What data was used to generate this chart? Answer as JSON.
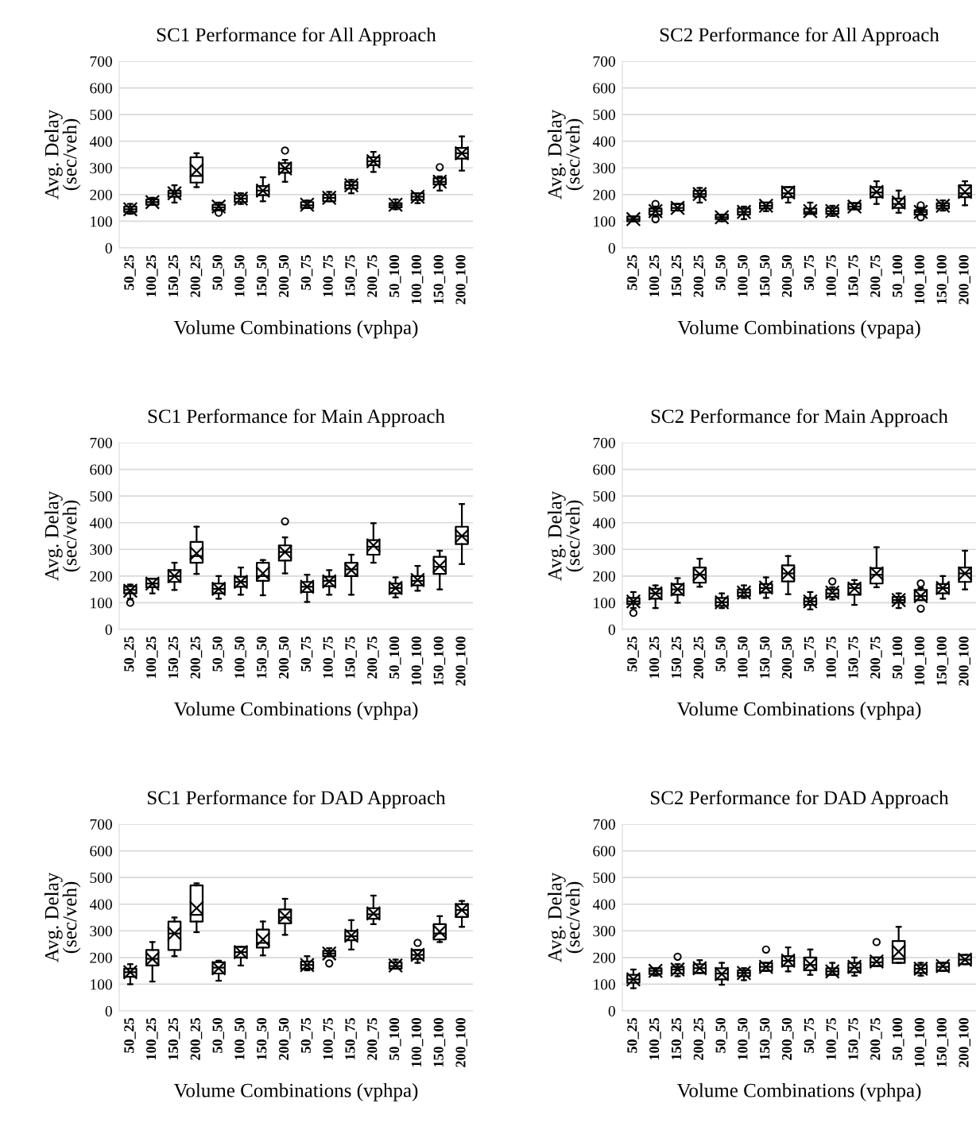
{
  "chart_data": [
    {
      "type": "box",
      "title": "SC1 Performance for All Approach",
      "xlabel": "Volume Combinations (vphpa)",
      "ylabel": "Avg. Delay\n(sec/veh)",
      "categories": [
        "50_25",
        "100_25",
        "150_25",
        "200_25",
        "50_50",
        "100_50",
        "150_50",
        "200_50",
        "50_75",
        "100_75",
        "150_75",
        "200_75",
        "50_100",
        "100_100",
        "150_100",
        "200_100"
      ],
      "ylim": [
        0,
        700
      ],
      "yticks": [
        0,
        100,
        200,
        300,
        400,
        500,
        600,
        700
      ],
      "grid": "y",
      "legend": false,
      "boxes": [
        {
          "low": 128,
          "q1": 135,
          "median": 145,
          "q3": 155,
          "high": 165,
          "mean": 145
        },
        {
          "low": 162,
          "q1": 162,
          "median": 172,
          "q3": 182,
          "high": 188,
          "mean": 172
        },
        {
          "low": 170,
          "q1": 192,
          "median": 205,
          "q3": 215,
          "high": 235,
          "mean": 205
        },
        {
          "low": 228,
          "q1": 245,
          "median": 270,
          "q3": 340,
          "high": 355,
          "mean": 291
        },
        {
          "low": 142,
          "q1": 142,
          "median": 152,
          "q3": 162,
          "high": 170,
          "mean": 155,
          "outliers": [
            132
          ]
        },
        {
          "low": 165,
          "q1": 172,
          "median": 185,
          "q3": 198,
          "high": 205,
          "mean": 185
        },
        {
          "low": 175,
          "q1": 198,
          "median": 215,
          "q3": 232,
          "high": 265,
          "mean": 215
        },
        {
          "low": 248,
          "q1": 282,
          "median": 298,
          "q3": 318,
          "high": 330,
          "mean": 298,
          "outliers": [
            365
          ]
        },
        {
          "low": 150,
          "q1": 150,
          "median": 160,
          "q3": 172,
          "high": 178,
          "mean": 162
        },
        {
          "low": 175,
          "q1": 175,
          "median": 188,
          "q3": 200,
          "high": 210,
          "mean": 188
        },
        {
          "low": 205,
          "q1": 222,
          "median": 235,
          "q3": 248,
          "high": 255,
          "mean": 235
        },
        {
          "low": 285,
          "q1": 310,
          "median": 325,
          "q3": 340,
          "high": 360,
          "mean": 325
        },
        {
          "low": 145,
          "q1": 152,
          "median": 160,
          "q3": 168,
          "high": 182,
          "mean": 162
        },
        {
          "low": 168,
          "q1": 180,
          "median": 192,
          "q3": 205,
          "high": 205,
          "mean": 192
        },
        {
          "low": 215,
          "q1": 238,
          "median": 248,
          "q3": 262,
          "high": 268,
          "mean": 248,
          "outliers": [
            303
          ]
        },
        {
          "low": 290,
          "q1": 335,
          "median": 355,
          "q3": 375,
          "high": 418,
          "mean": 355
        }
      ]
    },
    {
      "type": "box",
      "title": "SC2 Performance for All Approach",
      "xlabel": "Volume Combinations (vpapa)",
      "ylabel": "Avg. Delay\n(sec/veh)",
      "categories": [
        "50_25",
        "100_25",
        "150_25",
        "200_25",
        "50_50",
        "100_50",
        "150_50",
        "200_50",
        "50_75",
        "100_75",
        "150_75",
        "200_75",
        "50_100",
        "100_100",
        "150_100",
        "200_100"
      ],
      "ylim": [
        0,
        700
      ],
      "yticks": [
        0,
        100,
        200,
        300,
        400,
        500,
        600,
        700
      ],
      "grid": "y",
      "legend": false,
      "boxes": [
        {
          "low": 100,
          "q1": 100,
          "median": 108,
          "q3": 118,
          "high": 118,
          "mean": 108
        },
        {
          "low": 118,
          "q1": 125,
          "median": 138,
          "q3": 148,
          "high": 155,
          "mean": 138,
          "outliers": [
            108,
            165
          ]
        },
        {
          "low": 140,
          "q1": 140,
          "median": 150,
          "q3": 165,
          "high": 165,
          "mean": 150
        },
        {
          "low": 170,
          "q1": 192,
          "median": 202,
          "q3": 215,
          "high": 225,
          "mean": 202
        },
        {
          "low": 100,
          "q1": 108,
          "median": 115,
          "q3": 125,
          "high": 125,
          "mean": 115
        },
        {
          "low": 108,
          "q1": 125,
          "median": 135,
          "q3": 148,
          "high": 155,
          "mean": 135
        },
        {
          "low": 138,
          "q1": 148,
          "median": 158,
          "q3": 170,
          "high": 170,
          "mean": 158
        },
        {
          "low": 170,
          "q1": 190,
          "median": 205,
          "q3": 228,
          "high": 228,
          "mean": 208
        },
        {
          "low": 128,
          "q1": 128,
          "median": 135,
          "q3": 148,
          "high": 170,
          "mean": 138
        },
        {
          "low": 120,
          "q1": 128,
          "median": 138,
          "q3": 150,
          "high": 158,
          "mean": 138
        },
        {
          "low": 145,
          "q1": 145,
          "median": 155,
          "q3": 168,
          "high": 168,
          "mean": 155
        },
        {
          "low": 165,
          "q1": 190,
          "median": 208,
          "q3": 228,
          "high": 250,
          "mean": 210
        },
        {
          "low": 132,
          "q1": 150,
          "median": 165,
          "q3": 185,
          "high": 215,
          "mean": 170
        },
        {
          "low": 125,
          "q1": 125,
          "median": 135,
          "q3": 142,
          "high": 150,
          "mean": 135,
          "outliers": [
            115,
            160
          ]
        },
        {
          "low": 140,
          "q1": 148,
          "median": 158,
          "q3": 168,
          "high": 178,
          "mean": 158
        },
        {
          "low": 160,
          "q1": 190,
          "median": 205,
          "q3": 235,
          "high": 250,
          "mean": 210
        }
      ]
    },
    {
      "type": "box",
      "title": "SC1 Performance for Main Approach",
      "xlabel": "Volume Combinations (vphpa)",
      "ylabel": "Avg. Delay\n(sec/veh)",
      "categories": [
        "50_25",
        "100_25",
        "150_25",
        "200_25",
        "50_50",
        "100_50",
        "150_50",
        "200_50",
        "50_75",
        "100_75",
        "150_75",
        "200_75",
        "50_100",
        "100_100",
        "150_100",
        "200_100"
      ],
      "ylim": [
        0,
        700
      ],
      "yticks": [
        0,
        100,
        200,
        300,
        400,
        500,
        600,
        700
      ],
      "grid": "y",
      "legend": false,
      "boxes": [
        {
          "low": 115,
          "q1": 135,
          "median": 148,
          "q3": 162,
          "high": 168,
          "mean": 145,
          "outliers": [
            100
          ]
        },
        {
          "low": 135,
          "q1": 158,
          "median": 172,
          "q3": 190,
          "high": 190,
          "mean": 172
        },
        {
          "low": 148,
          "q1": 178,
          "median": 200,
          "q3": 222,
          "high": 250,
          "mean": 200
        },
        {
          "low": 208,
          "q1": 250,
          "median": 275,
          "q3": 328,
          "high": 385,
          "mean": 285
        },
        {
          "low": 115,
          "q1": 135,
          "median": 152,
          "q3": 172,
          "high": 200,
          "mean": 152
        },
        {
          "low": 130,
          "q1": 160,
          "median": 178,
          "q3": 198,
          "high": 232,
          "mean": 178
        },
        {
          "low": 128,
          "q1": 182,
          "median": 200,
          "q3": 250,
          "high": 260,
          "mean": 210
        },
        {
          "low": 210,
          "q1": 258,
          "median": 290,
          "q3": 315,
          "high": 345,
          "mean": 290,
          "outliers": [
            405
          ]
        },
        {
          "low": 103,
          "q1": 140,
          "median": 160,
          "q3": 178,
          "high": 205,
          "mean": 160
        },
        {
          "low": 130,
          "q1": 162,
          "median": 182,
          "q3": 198,
          "high": 222,
          "mean": 180
        },
        {
          "low": 130,
          "q1": 200,
          "median": 225,
          "q3": 250,
          "high": 280,
          "mean": 222
        },
        {
          "low": 250,
          "q1": 280,
          "median": 310,
          "q3": 335,
          "high": 398,
          "mean": 315
        },
        {
          "low": 120,
          "q1": 135,
          "median": 155,
          "q3": 172,
          "high": 195,
          "mean": 155
        },
        {
          "low": 145,
          "q1": 165,
          "median": 182,
          "q3": 200,
          "high": 238,
          "mean": 185
        },
        {
          "low": 150,
          "q1": 208,
          "median": 235,
          "q3": 272,
          "high": 295,
          "mean": 238
        },
        {
          "low": 245,
          "q1": 320,
          "median": 350,
          "q3": 385,
          "high": 470,
          "mean": 350
        }
      ]
    },
    {
      "type": "box",
      "title": "SC2 Performance for Main Approach",
      "xlabel": "Volume Combinations (vphpa)",
      "ylabel": "Avg. Delay\n(sec/veh)",
      "categories": [
        "50_25",
        "100_25",
        "150_25",
        "200_25",
        "50_50",
        "100_50",
        "150_50",
        "200_50",
        "50_75",
        "100_75",
        "150_75",
        "200_75",
        "50_100",
        "100_100",
        "150_100",
        "200_100"
      ],
      "ylim": [
        0,
        700
      ],
      "yticks": [
        0,
        100,
        200,
        300,
        400,
        500,
        600,
        700
      ],
      "grid": "y",
      "legend": false,
      "boxes": [
        {
          "low": 80,
          "q1": 95,
          "median": 105,
          "q3": 118,
          "high": 140,
          "mean": 105,
          "outliers": [
            62
          ]
        },
        {
          "low": 80,
          "q1": 115,
          "median": 135,
          "q3": 152,
          "high": 165,
          "mean": 135
        },
        {
          "low": 100,
          "q1": 130,
          "median": 150,
          "q3": 170,
          "high": 192,
          "mean": 150
        },
        {
          "low": 160,
          "q1": 175,
          "median": 205,
          "q3": 232,
          "high": 265,
          "mean": 207
        },
        {
          "low": 80,
          "q1": 88,
          "median": 102,
          "q3": 118,
          "high": 135,
          "mean": 102
        },
        {
          "low": 118,
          "q1": 125,
          "median": 138,
          "q3": 150,
          "high": 165,
          "mean": 138
        },
        {
          "low": 118,
          "q1": 138,
          "median": 155,
          "q3": 170,
          "high": 195,
          "mean": 157
        },
        {
          "low": 132,
          "q1": 180,
          "median": 210,
          "q3": 240,
          "high": 275,
          "mean": 210
        },
        {
          "low": 75,
          "q1": 92,
          "median": 105,
          "q3": 118,
          "high": 140,
          "mean": 105
        },
        {
          "low": 112,
          "q1": 122,
          "median": 135,
          "q3": 150,
          "high": 158,
          "mean": 138,
          "outliers": [
            180
          ]
        },
        {
          "low": 92,
          "q1": 130,
          "median": 155,
          "q3": 170,
          "high": 185,
          "mean": 153
        },
        {
          "low": 158,
          "q1": 172,
          "median": 205,
          "q3": 230,
          "high": 308,
          "mean": 210
        },
        {
          "low": 80,
          "q1": 100,
          "median": 110,
          "q3": 122,
          "high": 135,
          "mean": 110
        },
        {
          "low": 110,
          "q1": 110,
          "median": 125,
          "q3": 148,
          "high": 155,
          "mean": 125,
          "outliers": [
            78,
            172
          ]
        },
        {
          "low": 115,
          "q1": 135,
          "median": 155,
          "q3": 170,
          "high": 200,
          "mean": 155
        },
        {
          "low": 150,
          "q1": 178,
          "median": 210,
          "q3": 232,
          "high": 295,
          "mean": 210
        }
      ]
    },
    {
      "type": "box",
      "title": "SC1 Performance for DAD Approach",
      "xlabel": "Volume Combinations (vphpa)",
      "ylabel": "Avg. Delay\n(sec/veh)",
      "categories": [
        "50_25",
        "100_25",
        "150_25",
        "200_25",
        "50_50",
        "100_50",
        "150_50",
        "200_50",
        "50_75",
        "100_75",
        "150_75",
        "200_75",
        "50_100",
        "100_100",
        "150_100",
        "200_100"
      ],
      "ylim": [
        0,
        700
      ],
      "yticks": [
        0,
        100,
        200,
        300,
        400,
        500,
        600,
        700
      ],
      "grid": "y",
      "legend": false,
      "boxes": [
        {
          "low": 100,
          "q1": 128,
          "median": 145,
          "q3": 158,
          "high": 175,
          "mean": 145
        },
        {
          "low": 110,
          "q1": 170,
          "median": 195,
          "q3": 228,
          "high": 258,
          "mean": 195
        },
        {
          "low": 205,
          "q1": 228,
          "median": 290,
          "q3": 335,
          "high": 350,
          "mean": 290
        },
        {
          "low": 295,
          "q1": 335,
          "median": 360,
          "q3": 470,
          "high": 478,
          "mean": 385
        },
        {
          "low": 113,
          "q1": 140,
          "median": 162,
          "q3": 182,
          "high": 188,
          "mean": 160
        },
        {
          "low": 170,
          "q1": 200,
          "median": 220,
          "q3": 240,
          "high": 240,
          "mean": 220
        },
        {
          "low": 208,
          "q1": 237,
          "median": 255,
          "q3": 305,
          "high": 335,
          "mean": 268
        },
        {
          "low": 285,
          "q1": 328,
          "median": 350,
          "q3": 380,
          "high": 420,
          "mean": 355
        },
        {
          "low": 152,
          "q1": 158,
          "median": 172,
          "q3": 185,
          "high": 205,
          "mean": 172
        },
        {
          "low": 205,
          "q1": 205,
          "median": 215,
          "q3": 225,
          "high": 235,
          "mean": 215,
          "outliers": [
            178
          ]
        },
        {
          "low": 230,
          "q1": 265,
          "median": 280,
          "q3": 300,
          "high": 340,
          "mean": 282
        },
        {
          "low": 325,
          "q1": 345,
          "median": 362,
          "q3": 385,
          "high": 432,
          "mean": 365
        },
        {
          "low": 158,
          "q1": 158,
          "median": 168,
          "q3": 182,
          "high": 192,
          "mean": 170
        },
        {
          "low": 180,
          "q1": 195,
          "median": 210,
          "q3": 228,
          "high": 228,
          "mean": 210,
          "outliers": [
            255
          ]
        },
        {
          "low": 258,
          "q1": 268,
          "median": 290,
          "q3": 325,
          "high": 355,
          "mean": 297
        },
        {
          "low": 315,
          "q1": 352,
          "median": 378,
          "q3": 400,
          "high": 412,
          "mean": 378
        }
      ]
    },
    {
      "type": "box",
      "title": "SC2 Performance for DAD Approach",
      "xlabel": "Volume Combinations (vphpa)",
      "ylabel": "Avg. Delay\n(sec/veh)",
      "categories": [
        "50_25",
        "100_25",
        "150_25",
        "200_25",
        "50_50",
        "100_50",
        "150_50",
        "200_50",
        "50_75",
        "100_75",
        "150_75",
        "200_75",
        "50_100",
        "100_100",
        "150_100",
        "200_100"
      ],
      "ylim": [
        0,
        700
      ],
      "yticks": [
        0,
        100,
        200,
        300,
        400,
        500,
        600,
        700
      ],
      "grid": "y",
      "legend": false,
      "boxes": [
        {
          "low": 85,
          "q1": 105,
          "median": 118,
          "q3": 135,
          "high": 155,
          "mean": 118
        },
        {
          "low": 132,
          "q1": 138,
          "median": 150,
          "q3": 160,
          "high": 160,
          "mean": 150
        },
        {
          "low": 130,
          "q1": 140,
          "median": 155,
          "q3": 165,
          "high": 175,
          "mean": 155,
          "outliers": [
            203
          ]
        },
        {
          "low": 142,
          "q1": 142,
          "median": 160,
          "q3": 175,
          "high": 190,
          "mean": 160
        },
        {
          "low": 98,
          "q1": 118,
          "median": 140,
          "q3": 160,
          "high": 180,
          "mean": 138
        },
        {
          "low": 115,
          "q1": 130,
          "median": 142,
          "q3": 152,
          "high": 160,
          "mean": 142
        },
        {
          "low": 150,
          "q1": 150,
          "median": 165,
          "q3": 180,
          "high": 180,
          "mean": 165,
          "outliers": [
            230
          ]
        },
        {
          "low": 148,
          "q1": 168,
          "median": 188,
          "q3": 205,
          "high": 238,
          "mean": 188
        },
        {
          "low": 135,
          "q1": 152,
          "median": 172,
          "q3": 200,
          "high": 230,
          "mean": 175
        },
        {
          "low": 135,
          "q1": 135,
          "median": 148,
          "q3": 160,
          "high": 180,
          "mean": 148
        },
        {
          "low": 132,
          "q1": 145,
          "median": 162,
          "q3": 180,
          "high": 200,
          "mean": 165
        },
        {
          "low": 168,
          "q1": 168,
          "median": 182,
          "q3": 200,
          "high": 200,
          "mean": 185,
          "outliers": [
            258
          ]
        },
        {
          "low": 180,
          "q1": 180,
          "median": 195,
          "q3": 262,
          "high": 315,
          "mean": 222
        },
        {
          "low": 132,
          "q1": 142,
          "median": 158,
          "q3": 172,
          "high": 180,
          "mean": 158
        },
        {
          "low": 150,
          "q1": 150,
          "median": 165,
          "q3": 180,
          "high": 180,
          "mean": 168
        },
        {
          "low": 175,
          "q1": 175,
          "median": 192,
          "q3": 210,
          "high": 210,
          "mean": 192
        }
      ]
    }
  ]
}
